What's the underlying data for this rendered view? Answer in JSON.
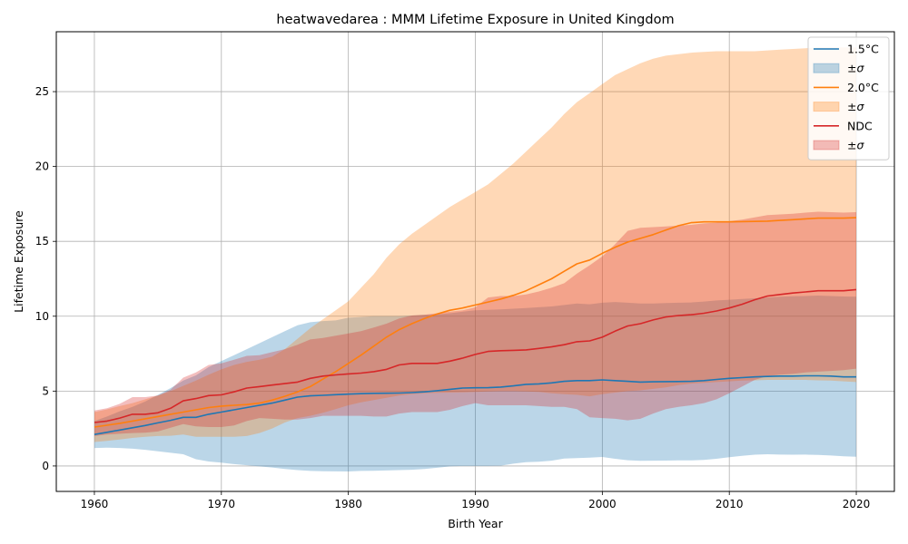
{
  "chart_data": {
    "type": "area",
    "title": "heatwavedarea : MMM Lifetime Exposure in United Kingdom",
    "xlabel": "Birth Year",
    "ylabel": "Lifetime Exposure",
    "xlim": [
      1957,
      2023
    ],
    "ylim": [
      -1.7,
      29.0
    ],
    "xticks": [
      1960,
      1970,
      1980,
      1990,
      2000,
      2010,
      2020
    ],
    "yticks": [
      0,
      5,
      10,
      15,
      20,
      25
    ],
    "grid": true,
    "legend_position": "top-right",
    "x": [
      1960,
      1961,
      1962,
      1963,
      1964,
      1965,
      1966,
      1967,
      1968,
      1969,
      1970,
      1971,
      1972,
      1973,
      1974,
      1975,
      1976,
      1977,
      1978,
      1979,
      1980,
      1981,
      1982,
      1983,
      1984,
      1985,
      1986,
      1987,
      1988,
      1989,
      1990,
      1991,
      1992,
      1993,
      1994,
      1995,
      1996,
      1997,
      1998,
      1999,
      2000,
      2001,
      2002,
      2003,
      2004,
      2005,
      2006,
      2007,
      2008,
      2009,
      2010,
      2011,
      2012,
      2013,
      2014,
      2015,
      2016,
      2017,
      2018,
      2019,
      2020
    ],
    "series": [
      {
        "name": "1.5°C",
        "band_label": "±σ",
        "color": "#1f77b4",
        "band_color": "#1f77b4",
        "values": [
          2.1,
          2.25,
          2.4,
          2.55,
          2.7,
          2.88,
          3.05,
          3.25,
          3.25,
          3.45,
          3.6,
          3.75,
          3.9,
          4.05,
          4.2,
          4.4,
          4.6,
          4.68,
          4.72,
          4.76,
          4.8,
          4.83,
          4.85,
          4.86,
          4.87,
          4.9,
          4.95,
          5.03,
          5.12,
          5.2,
          5.22,
          5.23,
          5.27,
          5.35,
          5.45,
          5.48,
          5.55,
          5.65,
          5.7,
          5.7,
          5.75,
          5.7,
          5.65,
          5.6,
          5.62,
          5.63,
          5.64,
          5.65,
          5.7,
          5.78,
          5.85,
          5.9,
          5.95,
          5.98,
          6.0,
          6.0,
          6.02,
          6.02,
          6.0,
          5.95,
          5.95
        ],
        "lower": [
          1.2,
          1.22,
          1.2,
          1.15,
          1.08,
          0.98,
          0.88,
          0.78,
          0.45,
          0.3,
          0.22,
          0.12,
          0.05,
          -0.03,
          -0.1,
          -0.2,
          -0.28,
          -0.33,
          -0.35,
          -0.36,
          -0.37,
          -0.33,
          -0.32,
          -0.3,
          -0.28,
          -0.25,
          -0.2,
          -0.12,
          -0.03,
          0.0,
          0.0,
          0.0,
          0.02,
          0.15,
          0.25,
          0.28,
          0.35,
          0.5,
          0.52,
          0.55,
          0.6,
          0.48,
          0.38,
          0.34,
          0.35,
          0.36,
          0.37,
          0.37,
          0.4,
          0.48,
          0.58,
          0.68,
          0.75,
          0.78,
          0.76,
          0.75,
          0.76,
          0.74,
          0.7,
          0.65,
          0.62
        ],
        "upper": [
          3.0,
          3.3,
          3.65,
          3.95,
          4.3,
          4.75,
          5.2,
          5.7,
          6.05,
          6.6,
          7.0,
          7.4,
          7.8,
          8.2,
          8.6,
          9.0,
          9.4,
          9.6,
          9.68,
          9.72,
          9.9,
          9.95,
          10.0,
          10.0,
          10.0,
          10.05,
          10.1,
          10.12,
          10.2,
          10.3,
          10.4,
          10.42,
          10.45,
          10.5,
          10.55,
          10.6,
          10.65,
          10.75,
          10.85,
          10.8,
          10.9,
          10.95,
          10.9,
          10.85,
          10.85,
          10.88,
          10.9,
          10.92,
          10.98,
          11.05,
          11.1,
          11.15,
          11.2,
          11.25,
          11.3,
          11.33,
          11.35,
          11.38,
          11.35,
          11.32,
          11.3
        ]
      },
      {
        "name": "2.0°C",
        "band_label": "±σ",
        "color": "#ff7f0e",
        "band_color": "#ff7f0e",
        "values": [
          2.6,
          2.72,
          2.85,
          3.0,
          3.15,
          3.3,
          3.45,
          3.6,
          3.75,
          3.9,
          4.0,
          4.05,
          4.1,
          4.2,
          4.4,
          4.65,
          4.95,
          5.3,
          5.8,
          6.3,
          6.85,
          7.4,
          8.0,
          8.6,
          9.1,
          9.5,
          9.85,
          10.15,
          10.4,
          10.55,
          10.75,
          10.95,
          11.15,
          11.4,
          11.7,
          12.1,
          12.5,
          13.0,
          13.5,
          13.75,
          14.2,
          14.6,
          14.95,
          15.2,
          15.45,
          15.75,
          16.05,
          16.25,
          16.3,
          16.3,
          16.3,
          16.32,
          16.33,
          16.35,
          16.4,
          16.45,
          16.5,
          16.55,
          16.55,
          16.55,
          16.58
        ],
        "lower": [
          1.6,
          1.68,
          1.77,
          1.87,
          1.95,
          2.0,
          2.02,
          2.1,
          1.95,
          1.95,
          1.95,
          1.95,
          2.0,
          2.2,
          2.5,
          2.9,
          3.2,
          3.35,
          3.55,
          3.8,
          4.05,
          4.25,
          4.4,
          4.55,
          4.7,
          4.8,
          4.85,
          4.88,
          4.9,
          4.92,
          4.95,
          4.98,
          5.0,
          5.0,
          4.98,
          4.95,
          4.85,
          4.8,
          4.75,
          4.65,
          4.8,
          4.9,
          5.0,
          5.05,
          5.15,
          5.25,
          5.4,
          5.5,
          5.55,
          5.6,
          5.65,
          5.7,
          5.72,
          5.75,
          5.75,
          5.75,
          5.75,
          5.72,
          5.7,
          5.65,
          5.6
        ],
        "upper": [
          3.6,
          3.78,
          4.0,
          4.2,
          4.45,
          4.7,
          5.0,
          5.35,
          5.7,
          6.1,
          6.45,
          6.75,
          6.95,
          7.1,
          7.3,
          7.8,
          8.5,
          9.2,
          9.8,
          10.4,
          11.0,
          11.9,
          12.8,
          13.9,
          14.8,
          15.5,
          16.1,
          16.7,
          17.3,
          17.8,
          18.3,
          18.8,
          19.5,
          20.2,
          21.0,
          21.8,
          22.6,
          23.5,
          24.3,
          24.9,
          25.5,
          26.1,
          26.5,
          26.9,
          27.2,
          27.4,
          27.5,
          27.6,
          27.65,
          27.7,
          27.7,
          27.7,
          27.7,
          27.75,
          27.8,
          27.85,
          27.9,
          27.95,
          27.95,
          27.95,
          27.95
        ]
      },
      {
        "name": "NDC",
        "band_label": "±σ",
        "color": "#d62728",
        "band_color": "#d62728",
        "values": [
          2.9,
          3.0,
          3.2,
          3.45,
          3.45,
          3.55,
          3.85,
          4.35,
          4.5,
          4.7,
          4.75,
          4.95,
          5.2,
          5.3,
          5.4,
          5.5,
          5.6,
          5.85,
          6.0,
          6.08,
          6.15,
          6.2,
          6.3,
          6.45,
          6.75,
          6.85,
          6.85,
          6.85,
          7.0,
          7.2,
          7.45,
          7.65,
          7.7,
          7.72,
          7.75,
          7.85,
          7.95,
          8.1,
          8.3,
          8.35,
          8.6,
          9.0,
          9.35,
          9.5,
          9.75,
          9.95,
          10.05,
          10.1,
          10.2,
          10.35,
          10.55,
          10.8,
          11.1,
          11.35,
          11.45,
          11.55,
          11.62,
          11.7,
          11.7,
          11.7,
          11.78
        ],
        "lower": [
          2.0,
          2.1,
          2.15,
          2.2,
          2.22,
          2.3,
          2.55,
          2.8,
          2.65,
          2.6,
          2.6,
          2.7,
          3.0,
          3.2,
          3.15,
          3.1,
          3.1,
          3.2,
          3.35,
          3.35,
          3.35,
          3.35,
          3.3,
          3.3,
          3.5,
          3.6,
          3.6,
          3.6,
          3.75,
          4.0,
          4.2,
          4.05,
          4.05,
          4.05,
          4.05,
          4.0,
          3.95,
          3.95,
          3.8,
          3.25,
          3.2,
          3.15,
          3.05,
          3.15,
          3.5,
          3.8,
          3.95,
          4.05,
          4.2,
          4.45,
          4.85,
          5.3,
          5.75,
          6.0,
          6.1,
          6.15,
          6.25,
          6.3,
          6.35,
          6.4,
          6.5
        ],
        "upper": [
          3.7,
          3.85,
          4.15,
          4.6,
          4.6,
          4.7,
          5.1,
          5.9,
          6.25,
          6.75,
          6.85,
          7.1,
          7.35,
          7.4,
          7.6,
          7.8,
          8.1,
          8.45,
          8.55,
          8.7,
          8.85,
          9.0,
          9.25,
          9.5,
          9.85,
          10.05,
          10.1,
          10.2,
          10.3,
          10.4,
          10.6,
          11.25,
          11.35,
          11.35,
          11.45,
          11.65,
          11.9,
          12.2,
          12.85,
          13.4,
          14.0,
          14.8,
          15.7,
          15.9,
          15.95,
          16.0,
          16.05,
          16.1,
          16.2,
          16.25,
          16.35,
          16.45,
          16.6,
          16.75,
          16.8,
          16.85,
          16.92,
          16.98,
          16.95,
          16.92,
          16.95
        ]
      }
    ]
  }
}
